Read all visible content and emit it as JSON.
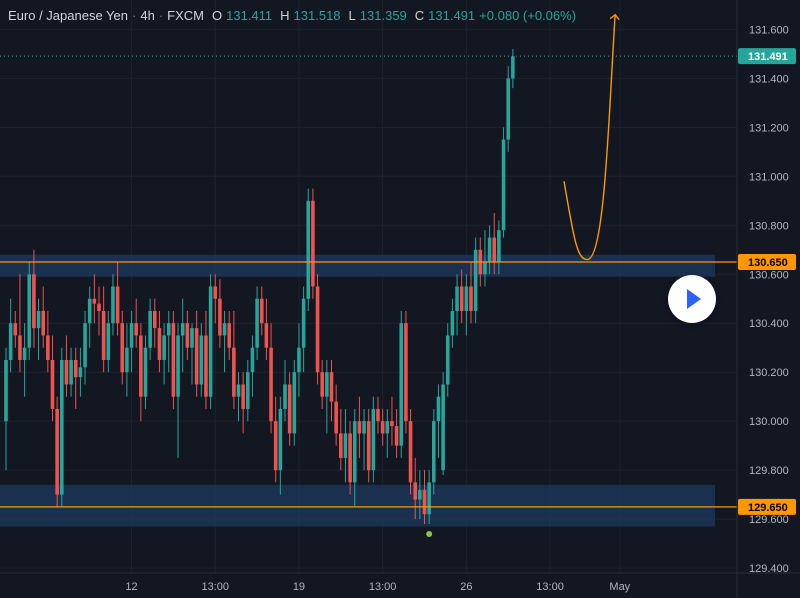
{
  "header": {
    "symbol": "Euro / Japanese Yen",
    "interval": "4h",
    "exchange": "FXCM",
    "o_label": "O",
    "o_value": "131.411",
    "h_label": "H",
    "h_value": "131.518",
    "l_label": "L",
    "l_value": "131.359",
    "c_label": "C",
    "c_value": "131.491",
    "change": "+0.080 (+0.06%)"
  },
  "colors": {
    "background": "#131722",
    "up": "#26a69a",
    "down": "#ef5350",
    "level_line": "#ff9800",
    "zone": "#1e3a5f",
    "axis_text": "#b2b5be",
    "last_price_bg": "#26a69a"
  },
  "chart_data": {
    "type": "candlestick",
    "y_axis": {
      "ticks": [
        "131.600",
        "131.400",
        "131.200",
        "131.000",
        "130.800",
        "130.600",
        "130.400",
        "130.200",
        "130.000",
        "129.800",
        "129.600",
        "129.400"
      ],
      "range": [
        129.38,
        131.72
      ]
    },
    "x_axis": {
      "ticks": [
        {
          "label": "12",
          "index": 27
        },
        {
          "label": "13:00",
          "index": 45
        },
        {
          "label": "19",
          "index": 63
        },
        {
          "label": "13:00",
          "index": 81
        },
        {
          "label": "26",
          "index": 99
        },
        {
          "label": "13:00",
          "index": 117
        },
        {
          "label": "May",
          "index": 132
        }
      ]
    },
    "last_price": "131.491",
    "levels": [
      {
        "label": "130.650",
        "value": 130.65,
        "zone": [
          130.59,
          130.68
        ]
      },
      {
        "label": "129.650",
        "value": 129.65,
        "zone": [
          129.57,
          129.74
        ]
      }
    ],
    "low_marker_index": 91,
    "projection": [
      [
        120,
        130.98
      ],
      [
        125,
        130.66
      ],
      [
        131,
        131.66
      ]
    ],
    "candles": [
      [
        130.0,
        130.3,
        129.8,
        130.25
      ],
      [
        130.25,
        130.5,
        130.2,
        130.4
      ],
      [
        130.4,
        130.45,
        130.3,
        130.35
      ],
      [
        130.35,
        130.6,
        130.2,
        130.25
      ],
      [
        130.25,
        130.4,
        130.1,
        130.3
      ],
      [
        130.3,
        130.65,
        130.25,
        130.6
      ],
      [
        130.6,
        130.7,
        130.3,
        130.38
      ],
      [
        130.38,
        130.5,
        130.25,
        130.45
      ],
      [
        130.45,
        130.55,
        130.3,
        130.35
      ],
      [
        130.35,
        130.45,
        130.2,
        130.25
      ],
      [
        130.25,
        130.35,
        130.0,
        130.05
      ],
      [
        130.05,
        130.1,
        129.65,
        129.7
      ],
      [
        129.7,
        130.3,
        129.65,
        130.25
      ],
      [
        130.25,
        130.35,
        130.1,
        130.15
      ],
      [
        130.15,
        130.3,
        130.1,
        130.25
      ],
      [
        130.25,
        130.3,
        130.05,
        130.18
      ],
      [
        130.18,
        130.3,
        130.1,
        130.22
      ],
      [
        130.22,
        130.45,
        130.15,
        130.4
      ],
      [
        130.4,
        130.55,
        130.3,
        130.5
      ],
      [
        130.5,
        130.6,
        130.4,
        130.48
      ],
      [
        130.48,
        130.55,
        130.35,
        130.45
      ],
      [
        130.45,
        130.55,
        130.2,
        130.25
      ],
      [
        130.25,
        130.45,
        130.2,
        130.4
      ],
      [
        130.4,
        130.6,
        130.35,
        130.55
      ],
      [
        130.55,
        130.65,
        130.35,
        130.4
      ],
      [
        130.4,
        130.45,
        130.15,
        130.2
      ],
      [
        130.2,
        130.4,
        130.1,
        130.3
      ],
      [
        130.3,
        130.45,
        130.2,
        130.4
      ],
      [
        130.4,
        130.5,
        130.3,
        130.35
      ],
      [
        130.35,
        130.4,
        130.0,
        130.1
      ],
      [
        130.1,
        130.35,
        130.05,
        130.3
      ],
      [
        130.3,
        130.5,
        130.25,
        130.45
      ],
      [
        130.45,
        130.5,
        130.3,
        130.38
      ],
      [
        130.38,
        130.45,
        130.2,
        130.25
      ],
      [
        130.25,
        130.4,
        130.15,
        130.35
      ],
      [
        130.35,
        130.45,
        130.2,
        130.4
      ],
      [
        130.4,
        130.45,
        130.05,
        130.1
      ],
      [
        130.1,
        130.4,
        129.85,
        130.35
      ],
      [
        130.35,
        130.5,
        130.2,
        130.4
      ],
      [
        130.4,
        130.45,
        130.25,
        130.3
      ],
      [
        130.3,
        130.4,
        130.15,
        130.38
      ],
      [
        130.38,
        130.45,
        130.1,
        130.15
      ],
      [
        130.15,
        130.4,
        130.1,
        130.35
      ],
      [
        130.35,
        130.45,
        130.05,
        130.1
      ],
      [
        130.1,
        130.6,
        130.05,
        130.55
      ],
      [
        130.55,
        130.6,
        130.4,
        130.5
      ],
      [
        130.5,
        130.58,
        130.3,
        130.35
      ],
      [
        130.35,
        130.45,
        130.2,
        130.4
      ],
      [
        130.4,
        130.45,
        130.25,
        130.3
      ],
      [
        130.3,
        130.45,
        130.05,
        130.1
      ],
      [
        130.1,
        130.2,
        130.0,
        130.15
      ],
      [
        130.15,
        130.2,
        129.95,
        130.05
      ],
      [
        130.05,
        130.25,
        130.0,
        130.2
      ],
      [
        130.2,
        130.35,
        130.1,
        130.3
      ],
      [
        130.3,
        130.55,
        130.25,
        130.5
      ],
      [
        130.5,
        130.55,
        130.35,
        130.4
      ],
      [
        130.4,
        130.5,
        130.25,
        130.3
      ],
      [
        130.3,
        130.4,
        129.95,
        130.0
      ],
      [
        130.0,
        130.1,
        129.75,
        129.8
      ],
      [
        129.8,
        130.1,
        129.7,
        130.05
      ],
      [
        130.05,
        130.25,
        130.0,
        130.15
      ],
      [
        130.15,
        130.2,
        129.9,
        129.95
      ],
      [
        129.95,
        130.25,
        129.9,
        130.2
      ],
      [
        130.2,
        130.4,
        130.1,
        130.3
      ],
      [
        130.3,
        130.55,
        130.2,
        130.5
      ],
      [
        130.5,
        130.95,
        130.45,
        130.9
      ],
      [
        130.9,
        130.95,
        130.5,
        130.55
      ],
      [
        130.55,
        130.6,
        130.15,
        130.2
      ],
      [
        130.2,
        130.25,
        130.05,
        130.1
      ],
      [
        130.1,
        130.25,
        129.95,
        130.2
      ],
      [
        130.2,
        130.25,
        130.0,
        130.08
      ],
      [
        130.08,
        130.15,
        129.9,
        129.95
      ],
      [
        129.95,
        130.05,
        129.8,
        129.85
      ],
      [
        129.85,
        130.05,
        129.75,
        129.95
      ],
      [
        129.95,
        130.0,
        129.7,
        129.75
      ],
      [
        129.75,
        130.05,
        129.65,
        130.0
      ],
      [
        130.0,
        130.1,
        129.85,
        129.95
      ],
      [
        129.95,
        130.05,
        129.8,
        130.0
      ],
      [
        130.0,
        130.05,
        129.75,
        129.8
      ],
      [
        129.8,
        130.1,
        129.75,
        130.05
      ],
      [
        130.05,
        130.1,
        129.95,
        130.0
      ],
      [
        130.0,
        130.05,
        129.9,
        129.95
      ],
      [
        129.95,
        130.05,
        129.85,
        130.0
      ],
      [
        130.0,
        130.1,
        129.9,
        129.98
      ],
      [
        129.98,
        130.05,
        129.85,
        129.9
      ],
      [
        129.9,
        130.45,
        129.85,
        130.4
      ],
      [
        130.4,
        130.45,
        129.95,
        130.0
      ],
      [
        130.0,
        130.05,
        129.7,
        129.75
      ],
      [
        129.75,
        129.85,
        129.6,
        129.68
      ],
      [
        129.68,
        129.8,
        129.6,
        129.72
      ],
      [
        129.72,
        129.8,
        129.58,
        129.62
      ],
      [
        129.62,
        129.8,
        129.58,
        129.75
      ],
      [
        129.75,
        130.05,
        129.7,
        130.0
      ],
      [
        130.0,
        130.15,
        129.85,
        130.1
      ],
      [
        129.8,
        130.2,
        129.78,
        130.15
      ],
      [
        130.15,
        130.4,
        130.1,
        130.35
      ],
      [
        130.35,
        130.5,
        130.3,
        130.45
      ],
      [
        130.45,
        130.6,
        130.35,
        130.55
      ],
      [
        130.55,
        130.62,
        130.4,
        130.45
      ],
      [
        130.45,
        130.6,
        130.35,
        130.55
      ],
      [
        130.55,
        130.65,
        130.4,
        130.45
      ],
      [
        130.45,
        130.75,
        130.4,
        130.7
      ],
      [
        130.7,
        130.75,
        130.55,
        130.6
      ],
      [
        130.6,
        130.78,
        130.55,
        130.65
      ],
      [
        130.65,
        130.8,
        130.6,
        130.75
      ],
      [
        130.75,
        130.85,
        130.6,
        130.65
      ],
      [
        130.65,
        130.82,
        130.6,
        130.78
      ],
      [
        130.78,
        131.2,
        130.75,
        131.15
      ],
      [
        131.15,
        131.45,
        131.1,
        131.4
      ],
      [
        131.4,
        131.52,
        131.36,
        131.49
      ]
    ]
  },
  "play_button": {
    "icon": "play-icon"
  }
}
